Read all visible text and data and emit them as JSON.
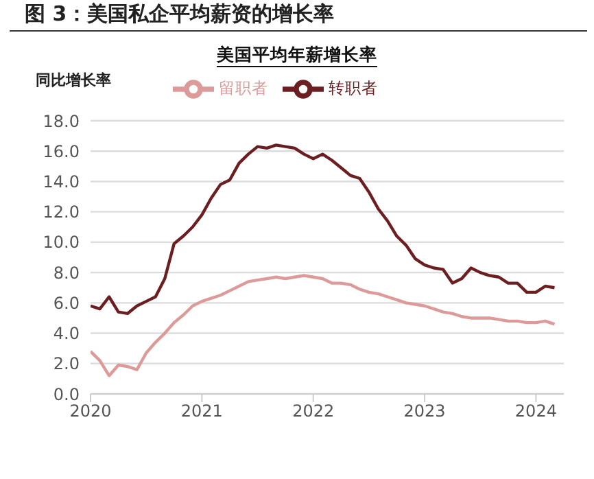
{
  "chart_data": {
    "type": "line",
    "title": "图 3：美国私企平均薪资的增长率",
    "subtitle": "美国平均年薪增长率",
    "ylabel": "同比增长率",
    "x": [
      "2020-01",
      "2020-02",
      "2020-03",
      "2020-04",
      "2020-05",
      "2020-06",
      "2020-07",
      "2020-08",
      "2020-09",
      "2020-10",
      "2020-11",
      "2020-12",
      "2021-01",
      "2021-02",
      "2021-03",
      "2021-04",
      "2021-05",
      "2021-06",
      "2021-07",
      "2021-08",
      "2021-09",
      "2021-10",
      "2021-11",
      "2021-12",
      "2022-01",
      "2022-02",
      "2022-03",
      "2022-04",
      "2022-05",
      "2022-06",
      "2022-07",
      "2022-08",
      "2022-09",
      "2022-10",
      "2022-11",
      "2022-12",
      "2023-01",
      "2023-02",
      "2023-03",
      "2023-04",
      "2023-05",
      "2023-06",
      "2023-07",
      "2023-08",
      "2023-09",
      "2023-10",
      "2023-11",
      "2023-12",
      "2024-01",
      "2024-02",
      "2024-03"
    ],
    "series": [
      {
        "name": "转职者",
        "color": "#6b1f20",
        "values": [
          5.8,
          5.6,
          6.4,
          5.4,
          5.3,
          5.8,
          6.1,
          6.4,
          7.6,
          9.9,
          10.4,
          11.0,
          11.8,
          12.9,
          13.8,
          14.1,
          15.2,
          15.8,
          16.3,
          16.2,
          16.4,
          16.3,
          16.2,
          15.8,
          15.5,
          15.8,
          15.4,
          14.9,
          14.4,
          14.2,
          13.3,
          12.2,
          11.4,
          10.4,
          9.8,
          8.9,
          8.5,
          8.3,
          8.2,
          7.3,
          7.6,
          8.3,
          8.0,
          7.8,
          7.7,
          7.3,
          7.3,
          6.7,
          6.7,
          7.1,
          7.0
        ]
      },
      {
        "name": "留职者",
        "color": "#dc9a98",
        "values": [
          2.8,
          2.2,
          1.2,
          1.9,
          1.8,
          1.6,
          2.7,
          3.4,
          4.0,
          4.7,
          5.2,
          5.8,
          6.1,
          6.3,
          6.5,
          6.8,
          7.1,
          7.4,
          7.5,
          7.6,
          7.7,
          7.6,
          7.7,
          7.8,
          7.7,
          7.6,
          7.3,
          7.3,
          7.2,
          6.9,
          6.7,
          6.6,
          6.4,
          6.2,
          6.0,
          5.9,
          5.8,
          5.6,
          5.4,
          5.3,
          5.1,
          5.0,
          5.0,
          5.0,
          4.9,
          4.8,
          4.8,
          4.7,
          4.7,
          4.8,
          4.6
        ]
      }
    ],
    "xlim": [
      "2020-01",
      "2024-04"
    ],
    "xticks": [
      "2020",
      "2021",
      "2022",
      "2023",
      "2024"
    ],
    "ylim": [
      0,
      18
    ],
    "yticks": [
      {
        "value": 0,
        "label": "0.0"
      },
      {
        "value": 2,
        "label": "2.0"
      },
      {
        "value": 4,
        "label": "4.0"
      },
      {
        "value": 6,
        "label": "6.0"
      },
      {
        "value": 8,
        "label": "8.0"
      },
      {
        "value": 10,
        "label": "10.0"
      },
      {
        "value": 12,
        "label": "12.0"
      },
      {
        "value": 14,
        "label": "14.0"
      },
      {
        "value": 16,
        "label": "16.0"
      },
      {
        "value": 18,
        "label": "18.0"
      }
    ],
    "grid": "y",
    "legend": "top",
    "marker": "none",
    "line_style": "solid"
  }
}
